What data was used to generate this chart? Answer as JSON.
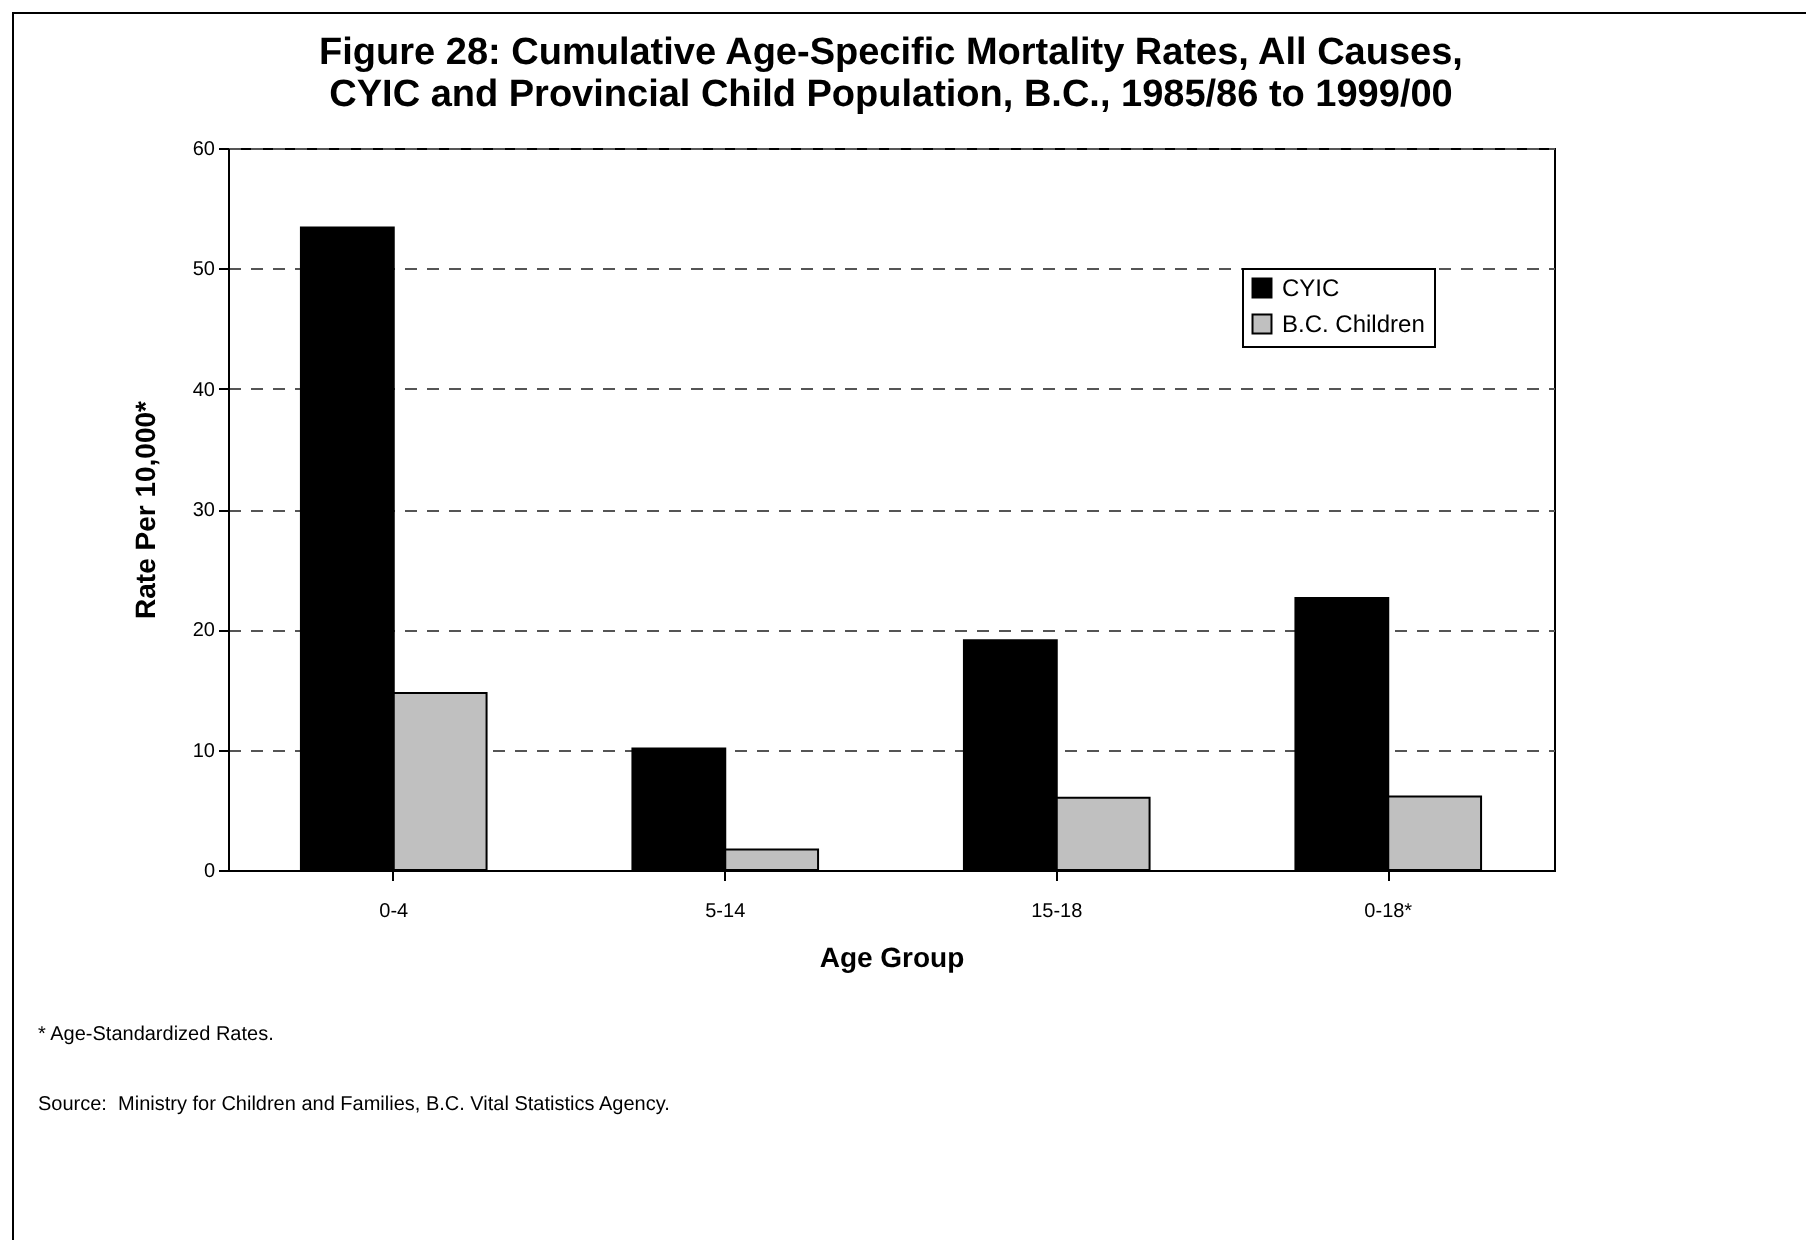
{
  "chart_data": {
    "type": "bar",
    "title": "Figure 28:  Cumulative Age-Specific Mortality Rates, All Causes, CYIC and Provincial Child Population, B.C., 1985/86 to 1999/00",
    "xlabel": "Age Group",
    "ylabel": "Rate Per 10,000*",
    "categories": [
      "0-4",
      "5-14",
      "15-18",
      "0-18*"
    ],
    "series": [
      {
        "name": "CYIC",
        "color": "#000000",
        "values": [
          53.4,
          10.1,
          19.1,
          22.6
        ]
      },
      {
        "name": "B.C. Children",
        "color": "#c0c0c0",
        "values": [
          14.7,
          1.7,
          6.0,
          6.1
        ]
      }
    ],
    "ylim": [
      0,
      60
    ],
    "yticks": [
      0,
      10,
      20,
      30,
      40,
      50,
      60
    ],
    "grid": "y",
    "legend": "top right",
    "annotations": [
      "* Age-Standardized Rates.",
      "Source:  Ministry for Children and Families, B.C. Vital Statistics Agency."
    ]
  }
}
